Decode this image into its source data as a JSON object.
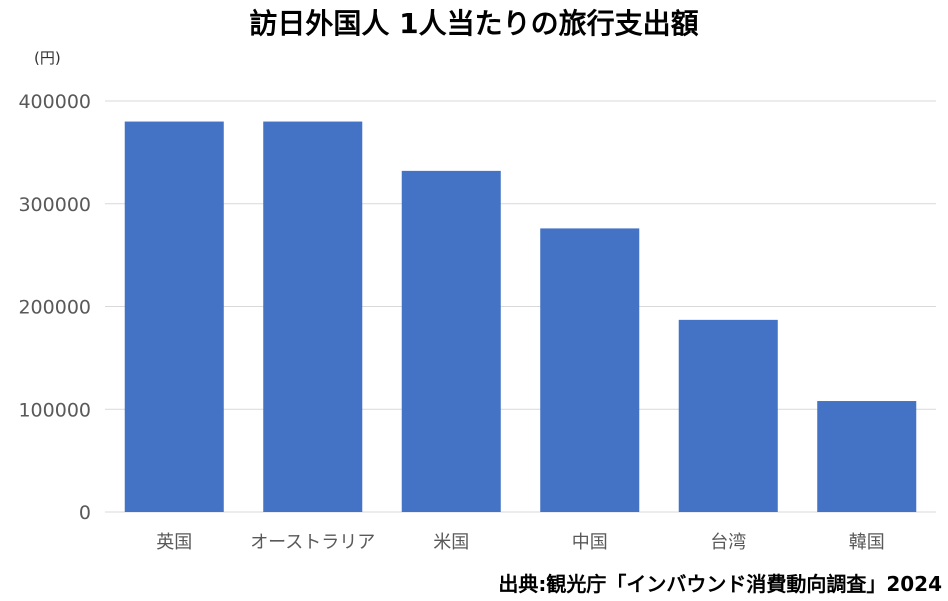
{
  "chart_data": {
    "type": "bar",
    "title": "訪日外国人 1人当たりの旅行支出額",
    "ylabel": "(円)",
    "xlabel": "",
    "categories": [
      "英国",
      "オーストラリア",
      "米国",
      "中国",
      "台湾",
      "韓国"
    ],
    "values": [
      380000,
      380000,
      332000,
      276000,
      187000,
      108000
    ],
    "ylim": [
      0,
      400000
    ],
    "yticks": [
      0,
      100000,
      200000,
      300000,
      400000
    ],
    "ytick_labels": [
      "0",
      "100000",
      "200000",
      "300000",
      "400000"
    ],
    "grid": true,
    "legend": "none",
    "bar_color": "#4472C4",
    "grid_color": "#D9D9D9"
  },
  "source_note": "出典:観光庁「インバウンド消費動向調査」2024"
}
